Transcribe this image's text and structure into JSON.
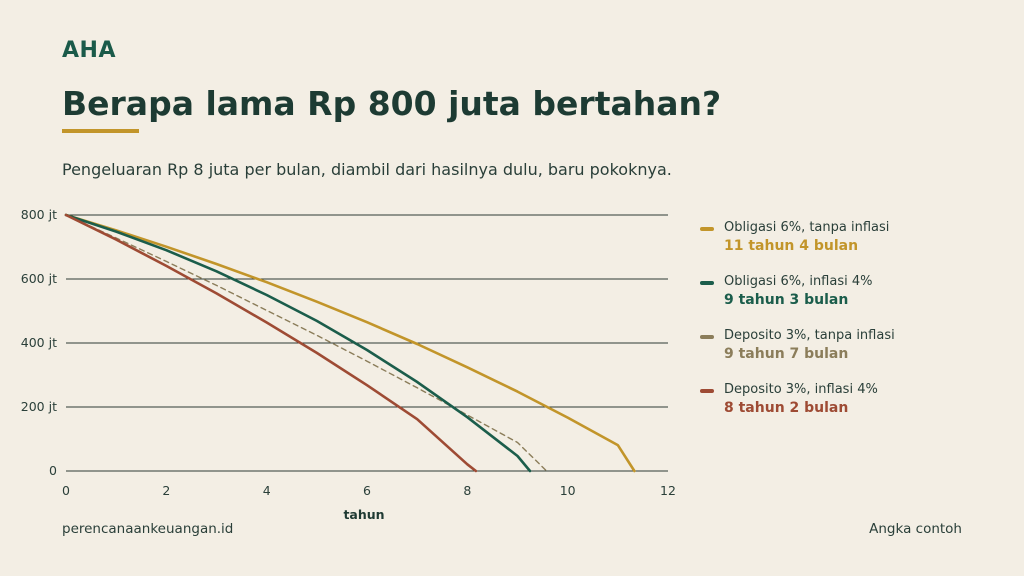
{
  "brand": "AHA",
  "title": "Berapa lama Rp 800 juta bertahan?",
  "subtitle": "Pengeluaran Rp 8 juta per bulan, diambil dari hasilnya dulu, baru pokoknya.",
  "footer": {
    "source": "perencanaankeuangan.id",
    "note": "Angka contoh"
  },
  "colors": {
    "background": "#f3eee4",
    "accent": "#c2952a",
    "grid": "#2d3a35"
  },
  "chart_data": {
    "type": "line",
    "xlabel": "tahun",
    "ylabel": "",
    "xlim": [
      0,
      12
    ],
    "ylim": [
      0,
      800
    ],
    "x_ticks": [
      "0",
      "2",
      "4",
      "6",
      "8",
      "10",
      "12"
    ],
    "y_ticks": [
      "0",
      "200 jt",
      "400 jt",
      "600 jt",
      "800 jt"
    ],
    "grid": true,
    "legend_position": "right",
    "series": [
      {
        "name": "Obligasi 6%, tanpa inflasi",
        "result": "11 tahun 4 bulan",
        "color": "#c2952a",
        "dashed": false,
        "x": [
          0,
          1,
          2,
          3,
          4,
          5,
          6,
          7,
          8,
          9,
          10,
          11,
          11.33
        ],
        "y": [
          800,
          752,
          701,
          647,
          590,
          529,
          465,
          397,
          324,
          248,
          167,
          81,
          0
        ]
      },
      {
        "name": "Obligasi 6%, inflasi 4%",
        "result": "9 tahun 3 bulan",
        "color": "#1b5d4b",
        "dashed": false,
        "x": [
          0,
          1,
          2,
          3,
          4,
          5,
          6,
          7,
          8,
          9,
          9.25
        ],
        "y": [
          800,
          748,
          690,
          624,
          550,
          469,
          378,
          278,
          168,
          47,
          0
        ]
      },
      {
        "name": "Deposito 3%, tanpa inflasi",
        "result": "9 tahun 7 bulan",
        "color": "#8b7d5a",
        "dashed": true,
        "x": [
          0,
          1,
          2,
          3,
          4,
          5,
          6,
          7,
          8,
          9,
          9.58
        ],
        "y": [
          800,
          728,
          655,
          580,
          502,
          424,
          343,
          260,
          175,
          89,
          0
        ]
      },
      {
        "name": "Deposito 3%, inflasi 4%",
        "result": "8 tahun 2 bulan",
        "color": "#9e4b34",
        "dashed": false,
        "x": [
          0,
          1,
          2,
          3,
          4,
          5,
          6,
          7,
          8,
          8.17
        ],
        "y": [
          800,
          723,
          641,
          555,
          464,
          369,
          268,
          162,
          21,
          0
        ]
      }
    ]
  }
}
